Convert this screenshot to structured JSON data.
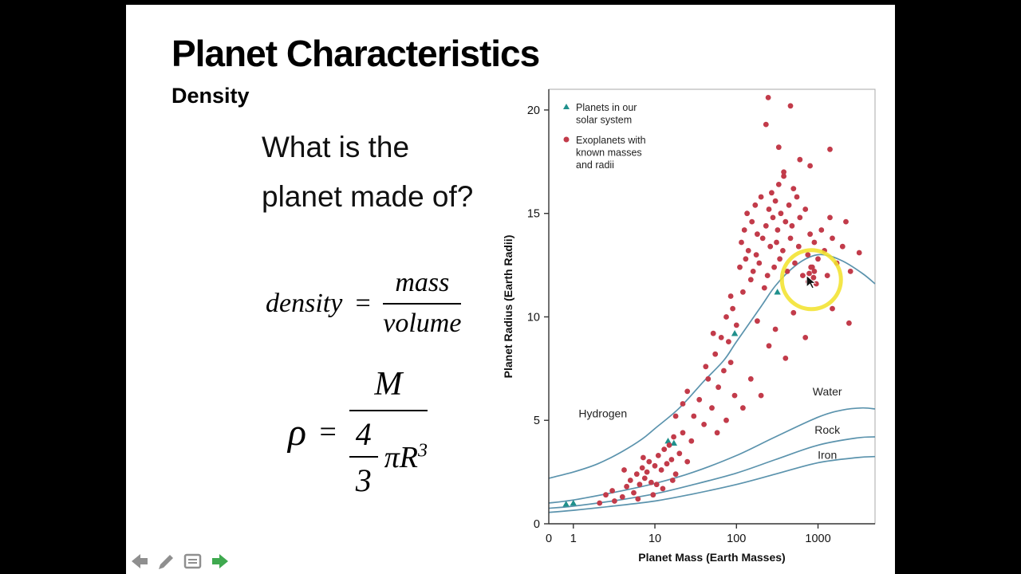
{
  "slide": {
    "title": "Planet Characteristics",
    "subtitle": "Density",
    "question_line1": "What is the",
    "question_line2": "planet made of?",
    "formula_density": {
      "lhs": "density",
      "equals": "=",
      "numerator": "mass",
      "denominator": "volume"
    },
    "formula_rho": {
      "lhs": "ρ",
      "equals": "=",
      "numerator": "M",
      "frac_num": "4",
      "frac_den": "3",
      "pi_r": "πR",
      "exponent": "3"
    }
  },
  "chart_data": {
    "type": "scatter",
    "title": "",
    "xlabel": "Planet Mass (Earth Masses)",
    "ylabel": "Planet Radius (Earth Radii)",
    "x_scale": "log",
    "x_range": [
      0.5,
      5000
    ],
    "y_range": [
      0,
      21
    ],
    "x_ticks": [
      {
        "label": "0",
        "value": 0.5,
        "tick": false
      },
      {
        "label": "1",
        "value": 1,
        "tick": true
      },
      {
        "label": "10",
        "value": 10,
        "tick": true
      },
      {
        "label": "100",
        "value": 100,
        "tick": true
      },
      {
        "label": "1000",
        "value": 1000,
        "tick": true
      }
    ],
    "y_ticks": [
      0,
      5,
      10,
      15,
      20
    ],
    "curve_color": "#5b93ad",
    "curves": [
      {
        "name": "Hydrogen",
        "label_at": [
          2.3,
          5.15
        ],
        "points": [
          [
            0.5,
            2.2
          ],
          [
            1,
            2.5
          ],
          [
            2,
            2.9
          ],
          [
            4,
            3.5
          ],
          [
            7,
            4.1
          ],
          [
            10,
            4.6
          ],
          [
            20,
            5.6
          ],
          [
            40,
            6.9
          ],
          [
            70,
            7.9
          ],
          [
            100,
            8.8
          ],
          [
            200,
            10.5
          ],
          [
            300,
            11.5
          ],
          [
            500,
            12.4
          ],
          [
            800,
            12.9
          ],
          [
            1200,
            13.0
          ],
          [
            2000,
            12.7
          ],
          [
            3500,
            12.1
          ],
          [
            5000,
            11.6
          ]
        ]
      },
      {
        "name": "Water",
        "label_at": [
          1300,
          6.2
        ],
        "points": [
          [
            0.5,
            1.0
          ],
          [
            1,
            1.15
          ],
          [
            3,
            1.5
          ],
          [
            10,
            1.95
          ],
          [
            30,
            2.5
          ],
          [
            100,
            3.3
          ],
          [
            300,
            4.2
          ],
          [
            1000,
            5.15
          ],
          [
            2000,
            5.5
          ],
          [
            3500,
            5.6
          ],
          [
            5000,
            5.55
          ]
        ]
      },
      {
        "name": "Rock",
        "label_at": [
          1300,
          4.35
        ],
        "points": [
          [
            0.5,
            0.75
          ],
          [
            1,
            0.85
          ],
          [
            3,
            1.1
          ],
          [
            10,
            1.45
          ],
          [
            30,
            1.9
          ],
          [
            100,
            2.45
          ],
          [
            300,
            3.1
          ],
          [
            1000,
            3.8
          ],
          [
            3000,
            4.15
          ],
          [
            5000,
            4.2
          ]
        ]
      },
      {
        "name": "Iron",
        "label_at": [
          1300,
          3.15
        ],
        "points": [
          [
            0.5,
            0.55
          ],
          [
            1,
            0.65
          ],
          [
            3,
            0.85
          ],
          [
            10,
            1.1
          ],
          [
            30,
            1.45
          ],
          [
            100,
            1.9
          ],
          [
            300,
            2.4
          ],
          [
            1000,
            2.95
          ],
          [
            3000,
            3.2
          ],
          [
            5000,
            3.25
          ]
        ]
      }
    ],
    "legend": [
      {
        "label": "Planets in our solar system",
        "lines": [
          "Planets in our",
          "solar system"
        ],
        "marker": "triangle",
        "color": "#20908c"
      },
      {
        "label": "Exoplanets with known masses and radii",
        "lines": [
          "Exoplanets with",
          "known masses",
          "and radii"
        ],
        "marker": "circle",
        "color": "#c23b4a"
      }
    ],
    "series": [
      {
        "name": "Planets in our solar system",
        "marker": "triangle",
        "color": "#20908c",
        "points": [
          [
            0.815,
            0.95
          ],
          [
            1,
            1.0
          ],
          [
            14.5,
            4.0
          ],
          [
            17.1,
            3.9
          ],
          [
            95.2,
            9.2
          ],
          [
            317.8,
            11.2
          ]
        ]
      },
      {
        "name": "Exoplanets with known masses and radii",
        "marker": "circle",
        "color": "#c23b4a",
        "points": [
          [
            2.1,
            1.0
          ],
          [
            2.5,
            1.4
          ],
          [
            3,
            1.6
          ],
          [
            3.2,
            1.1
          ],
          [
            4,
            1.3
          ],
          [
            4.5,
            1.8
          ],
          [
            5,
            2.1
          ],
          [
            5.5,
            1.5
          ],
          [
            6,
            2.4
          ],
          [
            6.5,
            1.9
          ],
          [
            7,
            2.7
          ],
          [
            7.5,
            2.2
          ],
          [
            8,
            2.5
          ],
          [
            8.5,
            3.0
          ],
          [
            9,
            2.0
          ],
          [
            10,
            2.8
          ],
          [
            10.5,
            1.9
          ],
          [
            11,
            3.3
          ],
          [
            12,
            2.6
          ],
          [
            13,
            3.6
          ],
          [
            14,
            2.9
          ],
          [
            15,
            3.8
          ],
          [
            16,
            3.1
          ],
          [
            17,
            4.2
          ],
          [
            18,
            2.4
          ],
          [
            20,
            3.4
          ],
          [
            22,
            4.4
          ],
          [
            25,
            3.0
          ],
          [
            28,
            4.0
          ],
          [
            6.2,
            1.2
          ],
          [
            9.5,
            1.4
          ],
          [
            12.5,
            1.7
          ],
          [
            16.5,
            2.1
          ],
          [
            4.2,
            2.6
          ],
          [
            7.2,
            3.2
          ],
          [
            18,
            5.2
          ],
          [
            22,
            5.8
          ],
          [
            25,
            6.4
          ],
          [
            30,
            5.2
          ],
          [
            35,
            6.0
          ],
          [
            40,
            4.8
          ],
          [
            45,
            7.0
          ],
          [
            50,
            5.6
          ],
          [
            55,
            8.2
          ],
          [
            60,
            6.6
          ],
          [
            65,
            9.0
          ],
          [
            70,
            7.4
          ],
          [
            75,
            5.0
          ],
          [
            80,
            8.8
          ],
          [
            85,
            7.8
          ],
          [
            90,
            10.4
          ],
          [
            95,
            6.2
          ],
          [
            100,
            9.6
          ],
          [
            42,
            7.6
          ],
          [
            58,
            4.4
          ],
          [
            85,
            11.0
          ],
          [
            52,
            9.2
          ],
          [
            75,
            10.0
          ],
          [
            110,
            12.4
          ],
          [
            115,
            13.6
          ],
          [
            120,
            11.2
          ],
          [
            125,
            14.2
          ],
          [
            130,
            12.8
          ],
          [
            135,
            15.0
          ],
          [
            140,
            13.2
          ],
          [
            150,
            11.8
          ],
          [
            155,
            14.6
          ],
          [
            160,
            12.2
          ],
          [
            170,
            15.4
          ],
          [
            175,
            13.0
          ],
          [
            180,
            14.0
          ],
          [
            190,
            12.6
          ],
          [
            200,
            15.8
          ],
          [
            210,
            13.8
          ],
          [
            220,
            11.4
          ],
          [
            230,
            14.4
          ],
          [
            240,
            12.0
          ],
          [
            250,
            15.2
          ],
          [
            260,
            13.4
          ],
          [
            270,
            16.0
          ],
          [
            280,
            14.8
          ],
          [
            290,
            12.4
          ],
          [
            300,
            15.6
          ],
          [
            310,
            13.6
          ],
          [
            320,
            14.2
          ],
          [
            330,
            16.4
          ],
          [
            340,
            12.8
          ],
          [
            350,
            15.0
          ],
          [
            370,
            13.2
          ],
          [
            380,
            16.8
          ],
          [
            400,
            14.6
          ],
          [
            420,
            12.2
          ],
          [
            440,
            15.4
          ],
          [
            460,
            13.8
          ],
          [
            480,
            14.4
          ],
          [
            500,
            16.2
          ],
          [
            520,
            12.6
          ],
          [
            550,
            15.8
          ],
          [
            580,
            13.4
          ],
          [
            600,
            14.8
          ],
          [
            650,
            12.0
          ],
          [
            700,
            15.2
          ],
          [
            750,
            13.0
          ],
          [
            800,
            14.0
          ],
          [
            850,
            12.4
          ],
          [
            900,
            13.6
          ],
          [
            950,
            11.6
          ],
          [
            1000,
            12.8
          ],
          [
            1100,
            14.2
          ],
          [
            1200,
            13.2
          ],
          [
            1300,
            12.0
          ],
          [
            1400,
            14.8
          ],
          [
            1500,
            13.8
          ],
          [
            1700,
            12.6
          ],
          [
            2000,
            13.4
          ],
          [
            2200,
            14.6
          ],
          [
            780,
            12.1
          ],
          [
            880,
            11.9
          ],
          [
            820,
            12.4
          ],
          [
            900,
            12.2
          ],
          [
            760,
            11.7
          ],
          [
            245,
            20.6
          ],
          [
            460,
            20.2
          ],
          [
            230,
            19.3
          ],
          [
            330,
            18.2
          ],
          [
            1400,
            18.1
          ],
          [
            600,
            17.6
          ],
          [
            800,
            17.3
          ],
          [
            380,
            17.0
          ],
          [
            150,
            7.0
          ],
          [
            200,
            6.2
          ],
          [
            300,
            9.4
          ],
          [
            400,
            8.0
          ],
          [
            500,
            10.2
          ],
          [
            700,
            9.0
          ],
          [
            1500,
            10.4
          ],
          [
            120,
            5.6
          ],
          [
            250,
            8.6
          ],
          [
            180,
            9.8
          ],
          [
            2500,
            12.2
          ],
          [
            3200,
            13.1
          ],
          [
            2400,
            9.7
          ]
        ]
      }
    ],
    "annotation": {
      "shape": "circle",
      "center_mass": 830,
      "center_radius": 11.8,
      "radius_px": 37,
      "color": "#f3e32f"
    }
  },
  "nav": {
    "back_color": "#8f8f8f",
    "pen_color": "#8f8f8f",
    "notes_color": "#8f8f8f",
    "forward_color": "#3fa94f"
  }
}
